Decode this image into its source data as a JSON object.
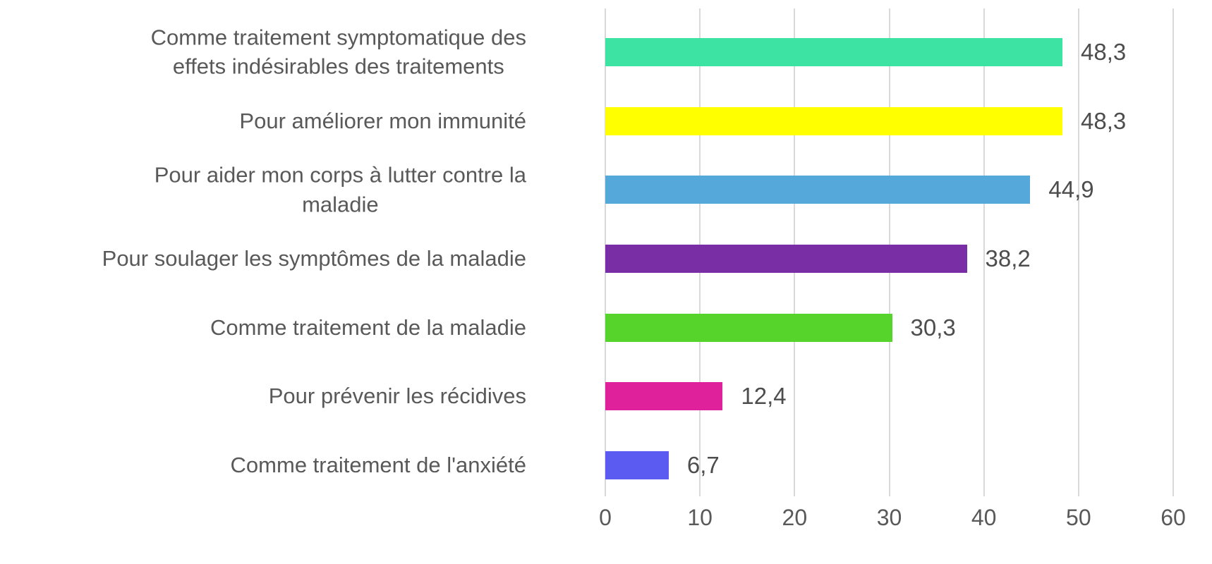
{
  "chart_data": {
    "type": "bar",
    "orientation": "horizontal",
    "title": "",
    "categories": [
      "Comme traitement symptomatique des\neffets indésirables des traitements",
      "Pour améliorer mon immunité",
      "Pour aider mon corps à lutter contre la\nmaladie",
      "Pour soulager les symptômes de la maladie",
      "Comme traitement de la maladie",
      "Pour prévenir les récidives",
      "Comme traitement de l'anxiété"
    ],
    "values": [
      48.3,
      48.3,
      44.9,
      38.2,
      30.3,
      12.4,
      6.7
    ],
    "value_labels": [
      "48,3",
      "48,3",
      "44,9",
      "38,2",
      "30,3",
      "12,4",
      "6,7"
    ],
    "bar_colors": [
      "#3CE3A3",
      "#FFFF00",
      "#55A9DA",
      "#7A2EA5",
      "#57D42B",
      "#E0219C",
      "#5B5BF1"
    ],
    "x_ticks": [
      "0",
      "10",
      "20",
      "30",
      "40",
      "50",
      "60"
    ],
    "xlim": [
      0,
      60
    ],
    "grid": true,
    "legend": "none",
    "value_label_position": "outside-end"
  },
  "colors": {
    "gridline": "#D9D9D9",
    "label_text": "#595959",
    "value_text": "#4D4D4D",
    "background": "#FFFFFF"
  }
}
